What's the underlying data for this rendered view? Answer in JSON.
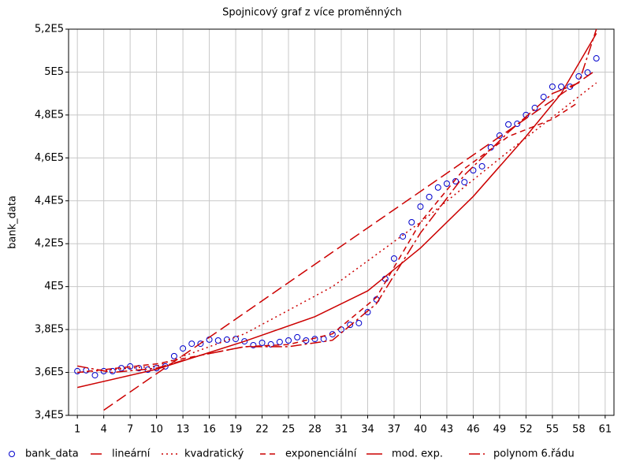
{
  "chart_data": {
    "type": "line",
    "title": "Spojnicový graf z více proměnných",
    "y_label": "bank_data",
    "xlim": [
      0,
      62
    ],
    "ylim": [
      340000,
      520000
    ],
    "xticks": [
      1,
      4,
      7,
      10,
      13,
      16,
      19,
      22,
      25,
      28,
      31,
      34,
      37,
      40,
      43,
      46,
      49,
      52,
      55,
      58,
      61
    ],
    "yticks": [
      {
        "value": 340000,
        "label": "3,4E5"
      },
      {
        "value": 360000,
        "label": "3,6E5"
      },
      {
        "value": 380000,
        "label": "3,8E5"
      },
      {
        "value": 400000,
        "label": "4E5"
      },
      {
        "value": 420000,
        "label": "4,2E5"
      },
      {
        "value": 440000,
        "label": "4,4E5"
      },
      {
        "value": 460000,
        "label": "4,6E5"
      },
      {
        "value": 480000,
        "label": "4,8E5"
      },
      {
        "value": 500000,
        "label": "5E5"
      },
      {
        "value": 520000,
        "label": "5,2E5"
      }
    ],
    "grid": true,
    "legend": "bottom",
    "series": [
      {
        "name": "bank_data",
        "color": "#0000cc",
        "style": "markers",
        "x": [
          1,
          2,
          3,
          4,
          5,
          6,
          7,
          8,
          9,
          10,
          11,
          12,
          13,
          14,
          15,
          16,
          17,
          18,
          19,
          20,
          21,
          22,
          23,
          24,
          25,
          26,
          27,
          28,
          29,
          30,
          31,
          32,
          33,
          34,
          35,
          36,
          37,
          38,
          39,
          40,
          41,
          42,
          43,
          44,
          45,
          46,
          47,
          48,
          49,
          50,
          51,
          52,
          53,
          54,
          55,
          56,
          57,
          58,
          59,
          60
        ],
        "values": [
          360600,
          361000,
          358700,
          360600,
          360600,
          362000,
          362800,
          362000,
          361300,
          362000,
          362800,
          367600,
          371200,
          373400,
          373400,
          375300,
          374900,
          375300,
          375600,
          374500,
          372700,
          373800,
          373100,
          374200,
          374900,
          376400,
          374900,
          375600,
          375600,
          377800,
          380000,
          382200,
          383000,
          388100,
          394000,
          403600,
          413100,
          423400,
          430000,
          437300,
          441800,
          446200,
          448000,
          449100,
          448700,
          454200,
          456100,
          464900,
          470400,
          475600,
          475900,
          480000,
          483300,
          488400,
          493200,
          493200,
          493200,
          498000,
          499800,
          506400
        ]
      },
      {
        "name": "lineární",
        "color": "#cc0000",
        "style": "longdash",
        "x": [
          4,
          60
        ],
        "values": [
          342400,
          501000
        ]
      },
      {
        "name": "kvadratický",
        "color": "#cc0000",
        "style": "dotted",
        "x": [
          1,
          10,
          20,
          30,
          40,
          50,
          60
        ],
        "values": [
          360000,
          363000,
          378000,
          400000,
          430000,
          463000,
          495000
        ]
      },
      {
        "name": "exponenciální",
        "color": "#cc0000",
        "style": "dashed",
        "x": [
          1,
          10,
          20,
          25,
          30,
          35,
          40,
          45,
          50,
          55,
          58
        ],
        "values": [
          360000,
          364000,
          372000,
          373000,
          378000,
          395000,
          430000,
          455000,
          470000,
          478000,
          486000
        ]
      },
      {
        "name": "mod. exp.",
        "color": "#cc0000",
        "style": "solid",
        "x": [
          1,
          10,
          20,
          28,
          34,
          40,
          46,
          52,
          56,
          60
        ],
        "values": [
          353000,
          361500,
          374500,
          386000,
          398000,
          418000,
          442000,
          470000,
          490000,
          518000
        ]
      },
      {
        "name": "polynom 6.řádu",
        "color": "#cc0000",
        "style": "dashdot",
        "x": [
          1,
          5,
          10,
          15,
          20,
          25,
          30,
          35,
          40,
          45,
          50,
          55,
          58,
          60
        ],
        "values": [
          363000,
          360000,
          362000,
          368000,
          372000,
          372000,
          375000,
          392000,
          425000,
          452000,
          472000,
          490000,
          495000,
          520000
        ]
      }
    ]
  }
}
